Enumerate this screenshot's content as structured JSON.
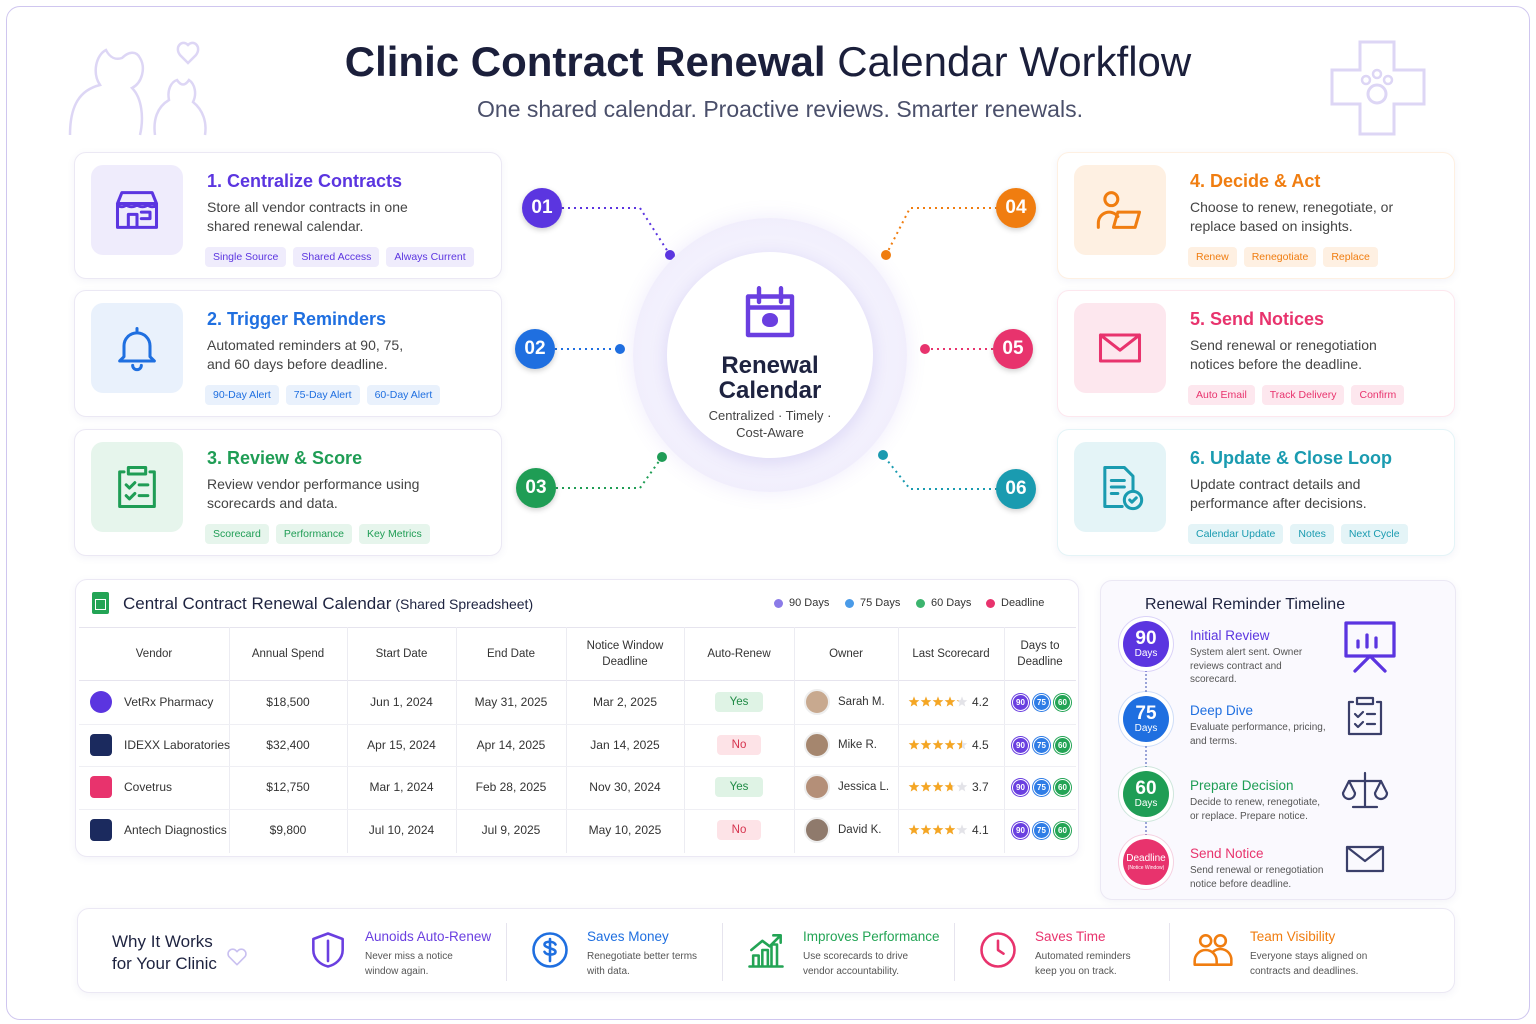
{
  "header": {
    "title_bold": "Clinic Contract Renewal",
    "title_rest": "Calendar Workflow",
    "subtitle": "One shared calendar. Proactive reviews. Smarter renewals."
  },
  "hub": {
    "title": "Renewal Calendar",
    "subtitle": "Centralized · Timely · Cost-Aware"
  },
  "steps": [
    {
      "number": "01",
      "title": "1. Centralize Contracts",
      "text": "Store all vendor contracts in one shared renewal calendar.",
      "tags": [
        "Single Source",
        "Shared Access",
        "Always Current"
      ]
    },
    {
      "number": "02",
      "title": "2. Trigger Reminders",
      "text": "Automated reminders at 90, 75, and 60 days before deadline.",
      "tags": [
        "90-Day Alert",
        "75-Day Alert",
        "60-Day Alert"
      ]
    },
    {
      "number": "03",
      "title": "3. Review & Score",
      "text": "Review vendor performance using scorecards and data.",
      "tags": [
        "Scorecard",
        "Performance",
        "Key Metrics"
      ]
    },
    {
      "number": "04",
      "title": "4. Decide & Act",
      "text": "Choose to renew, renegotiate, or replace based on insights.",
      "tags": [
        "Renew",
        "Renegotiate",
        "Replace"
      ]
    },
    {
      "number": "05",
      "title": "5. Send Notices",
      "text": "Send renewal or renegotiation notices before the deadline.",
      "tags": [
        "Auto Email",
        "Track Delivery",
        "Confirm"
      ]
    },
    {
      "number": "06",
      "title": "6. Update & Close Loop",
      "text": "Update contract details and performance after decisions.",
      "tags": [
        "Calendar Update",
        "Notes",
        "Next Cycle"
      ]
    }
  ],
  "table": {
    "title": "Central Contract Renewal Calendar",
    "title_note": "(Shared Spreadsheet)",
    "legend": [
      "90 Days",
      "75 Days",
      "60 Days",
      "Deadline"
    ],
    "columns": [
      "Vendor",
      "Annual Spend",
      "Start Date",
      "End Date",
      "Notice Window Deadline",
      "Auto-Renew",
      "Owner",
      "Last Scorecard",
      "Days to Deadline"
    ],
    "day_badges": [
      "90",
      "75",
      "60"
    ],
    "rows": [
      {
        "vendor": "VetRx Pharmacy",
        "spend": "$18,500",
        "start": "Jun 1, 2024",
        "end": "May 31, 2025",
        "notice": "Mar 2, 2025",
        "auto_renew": "Yes",
        "owner": "Sarah M.",
        "score": 4.2
      },
      {
        "vendor": "IDEXX Laboratories",
        "spend": "$32,400",
        "start": "Apr 15, 2024",
        "end": "Apr 14, 2025",
        "notice": "Jan 14, 2025",
        "auto_renew": "No",
        "owner": "Mike R.",
        "score": 4.5
      },
      {
        "vendor": "Covetrus",
        "spend": "$12,750",
        "start": "Mar 1, 2024",
        "end": "Feb 28, 2025",
        "notice": "Nov 30, 2024",
        "auto_renew": "Yes",
        "owner": "Jessica L.",
        "score": 3.7
      },
      {
        "vendor": "Antech Diagnostics",
        "spend": "$9,800",
        "start": "Jul 10, 2024",
        "end": "Jul 9, 2025",
        "notice": "May 10, 2025",
        "auto_renew": "No",
        "owner": "David K.",
        "score": 4.1
      }
    ]
  },
  "timeline": {
    "title": "Renewal Reminder Timeline",
    "items": [
      {
        "badge": "90",
        "unit": "Days",
        "title": "Initial Review",
        "text": "System alert sent. Owner reviews contract and scorecard."
      },
      {
        "badge": "75",
        "unit": "Days",
        "title": "Deep Dive",
        "text": "Evaluate performance, pricing, and terms."
      },
      {
        "badge": "60",
        "unit": "Days",
        "title": "Prepare Decision",
        "text": "Decide to renew, renegotiate, or replace. Prepare notice."
      },
      {
        "badge": "Deadline",
        "unit": "(Notice Window)",
        "title": "Send Notice",
        "text": "Send renewal or renegotiation notice before deadline."
      }
    ]
  },
  "benefits": {
    "title": "Why It Works for Your Clinic",
    "items": [
      {
        "title": "Aunoids Auto-Renew",
        "text": "Never miss a notice window again."
      },
      {
        "title": "Saves Money",
        "text": "Renegotiate better terms with data."
      },
      {
        "title": "Improves Performance",
        "text": "Use scorecards to drive vendor accountability."
      },
      {
        "title": "Saves Time",
        "text": "Automated reminders keep you on track."
      },
      {
        "title": "Team Visibility",
        "text": "Everyone stays aligned on contracts and deadlines."
      }
    ]
  }
}
